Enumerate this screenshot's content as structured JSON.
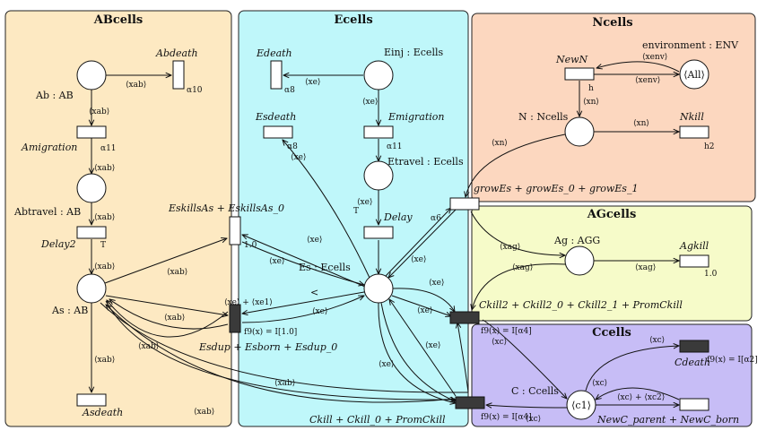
{
  "regions": {
    "abcells": {
      "title": "ABcells",
      "fill": "#fde9c2"
    },
    "ecells": {
      "title": "Ecells",
      "fill": "#bff7fa"
    },
    "ncells": {
      "title": "Ncells",
      "fill": "#fcd7bf"
    },
    "agcells": {
      "title": "AGcells",
      "fill": "#f6fbc9"
    },
    "ccells": {
      "title": "Ccells",
      "fill": "#c7bdf6"
    }
  },
  "places": {
    "ab": "Ab : AB",
    "abtravel": "Abtravel : AB",
    "as": "As : AB",
    "einj": "Einj : Ecells",
    "etravel": "Etravel : Ecells",
    "es": "Es : Ecells",
    "n": "N : Ncells",
    "env": "environment : ENV",
    "env_token": "⟨All⟩",
    "ag": "Ag : AGG",
    "c": "C : Ccells",
    "c_token": "⟨c1⟩"
  },
  "transitions": {
    "abdeath": "Abdeath",
    "amigration": "Amigration",
    "delay2": "Delay2",
    "asdeath": "Asdeath",
    "edeath": "Edeath",
    "esdeath": "Esdeath",
    "emigration": "Emigration",
    "delay": "Delay",
    "eskills": "EskillsAs + EskillsAs_0",
    "esdup": "Esdup + Esborn + Esdup_0",
    "newn": "NewN",
    "nkill": "Nkill",
    "grow": "growEs + growEs_0 + growEs_1",
    "agkill": "Agkill",
    "ckill2": "Ckill2 + Ckill2_0 + Ckill2_1 + PromCkill",
    "ckill": "Ckill + Ckill_0 + PromCkill",
    "cdeath": "Cdeath",
    "newc": "NewC_parent + NewC_born"
  },
  "rates": {
    "a10": "α10",
    "a11": "α11",
    "a11b": "α11",
    "a8": "α8",
    "a8b": "α8",
    "a6": "α6",
    "T1": "T",
    "T2": "T",
    "r1": "1.0",
    "r2": "1.0",
    "h": "h",
    "h2": "h2",
    "f1": "f9(x) = I[1.0]",
    "f2": "f9(x) = I[α4]",
    "f3": "f9(x) = I[α4]",
    "f4": "f9(x) = I[α2]"
  },
  "arc_labels": {
    "xab1": "⟨xab⟩",
    "xab2": "⟨xab⟩",
    "xab3": "⟨xab⟩",
    "xab4": "⟨xab⟩",
    "xab5": "⟨xab⟩",
    "xab6": "⟨xab⟩",
    "xab7": "⟨xab⟩",
    "xab8": "⟨xab⟩",
    "xab9": "⟨xab⟩",
    "xab10": "⟨xab⟩",
    "xab11": "⟨xab⟩",
    "xe1": "⟨xe⟩",
    "xe2": "⟨xe⟩",
    "xe3": "⟨xe⟩",
    "xe4": "⟨xe⟩",
    "xe5": "⟨xe⟩",
    "xe6": "⟨xe⟩",
    "xe7": "⟨xe⟩",
    "xe8": "⟨xe⟩",
    "xe9": "⟨xe⟩",
    "xe10": "⟨xe⟩",
    "xe11": "⟨xe⟩",
    "xe12": "⟨xe⟩",
    "xexe": "⟨xe⟩ + ⟨xe1⟩",
    "xenv1": "⟨xenv⟩",
    "xenv2": "⟨xenv⟩",
    "xn1": "⟨xn⟩",
    "xn2": "⟨xn⟩",
    "xn3": "⟨xn⟩",
    "xag1": "⟨xag⟩",
    "xag2": "⟨xag⟩",
    "xag3": "⟨xag⟩",
    "xc1": "⟨xc⟩",
    "xc2": "⟨xc⟩",
    "xc3": "⟨xc⟩",
    "xc4": "⟨xc⟩",
    "xcxc2": "⟨xc⟩ + ⟨xc2⟩",
    "lt": "<"
  }
}
